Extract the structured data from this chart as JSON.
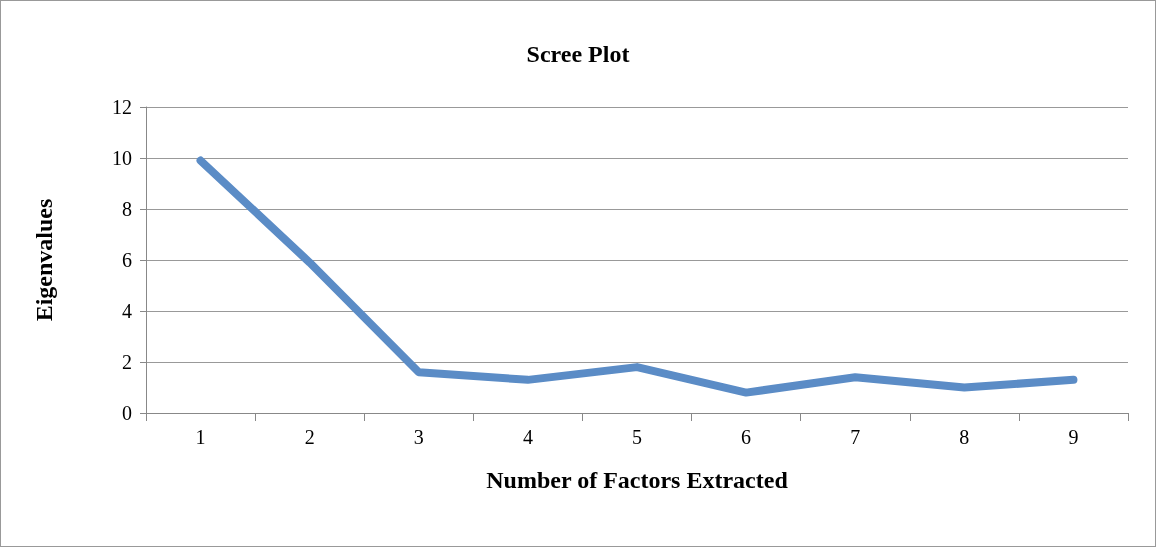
{
  "chart_data": {
    "type": "line",
    "title": "Scree Plot",
    "xlabel": "Number of Factors Extracted",
    "ylabel": "Eigenvalues",
    "categories": [
      "1",
      "2",
      "3",
      "4",
      "5",
      "6",
      "7",
      "8",
      "9"
    ],
    "series": [
      {
        "color": "#5b8cc6",
        "values": [
          9.9,
          5.9,
          1.6,
          1.3,
          1.8,
          0.8,
          1.4,
          1.0,
          1.3
        ]
      }
    ],
    "ylim": [
      0,
      12
    ],
    "yticks": [
      0,
      2,
      4,
      6,
      8,
      10,
      12
    ],
    "grid": "y"
  }
}
